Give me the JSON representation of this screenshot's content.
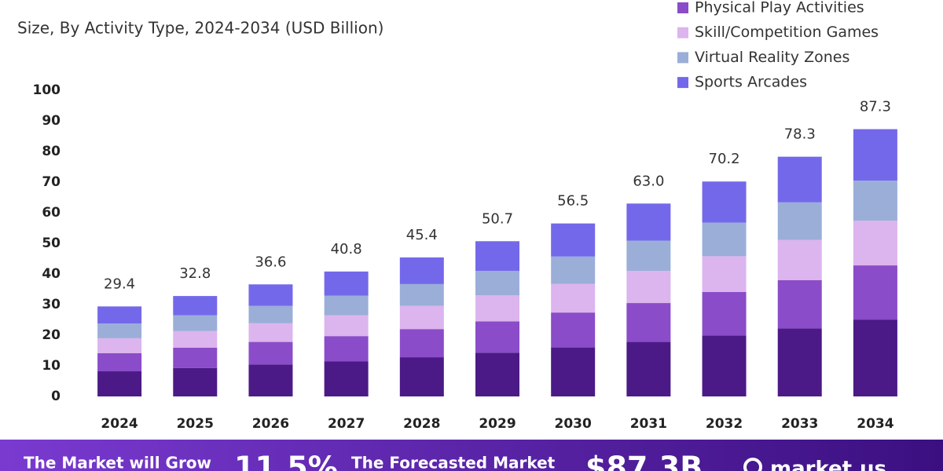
{
  "chart_data": {
    "type": "stacked-bar",
    "subtitle": "Size, By Activity Type, 2024-2034 (USD Billion)",
    "categories": [
      "2024",
      "2025",
      "2026",
      "2027",
      "2028",
      "2029",
      "2030",
      "2031",
      "2032",
      "2033",
      "2034"
    ],
    "series": [
      {
        "color": "#4b1a86",
        "values": [
          8.2,
          9.3,
          10.4,
          11.5,
          12.8,
          14.3,
          16.0,
          17.8,
          19.9,
          22.2,
          25.1
        ]
      },
      {
        "name": "Physical Play Activities",
        "color": "#8a4cc8",
        "values": [
          5.9,
          6.6,
          7.4,
          8.2,
          9.2,
          10.2,
          11.4,
          12.7,
          14.2,
          15.8,
          17.7
        ]
      },
      {
        "name": "Skill/Competition Games",
        "color": "#dcb4ee",
        "values": [
          4.9,
          5.5,
          6.1,
          6.8,
          7.6,
          8.5,
          9.4,
          10.5,
          11.7,
          13.1,
          14.6
        ]
      },
      {
        "name": "Virtual Reality Zones",
        "color": "#9aaed8",
        "values": [
          4.8,
          5.1,
          5.7,
          6.4,
          7.1,
          8.0,
          8.9,
          9.9,
          11.0,
          12.3,
          13.1
        ]
      },
      {
        "name": "Sports Arcades",
        "color": "#7468ea",
        "values": [
          5.6,
          6.3,
          7.0,
          7.9,
          8.7,
          9.7,
          10.8,
          12.1,
          13.4,
          14.9,
          16.8
        ]
      }
    ],
    "totals": {
      "values": [
        29.4,
        32.8,
        36.6,
        40.8,
        45.4,
        50.7,
        56.5,
        63.0,
        70.2,
        78.3,
        87.3
      ],
      "value_labels": [
        "29.4",
        "32.8",
        "36.6",
        "40.8",
        "45.4",
        "50.7",
        "56.5",
        "63.0",
        "70.2",
        "78.3",
        "87.3"
      ]
    },
    "ylim": [
      0,
      100
    ],
    "yticks": [
      0,
      10,
      20,
      30,
      40,
      50,
      60,
      70,
      80,
      90,
      100
    ],
    "footer": {
      "growth_text": "The Market will Grow",
      "growth_value": "11.5%",
      "forecast_text": "The Forecasted Market",
      "forecast_value": "$87.3B",
      "brand": "market.us"
    }
  }
}
